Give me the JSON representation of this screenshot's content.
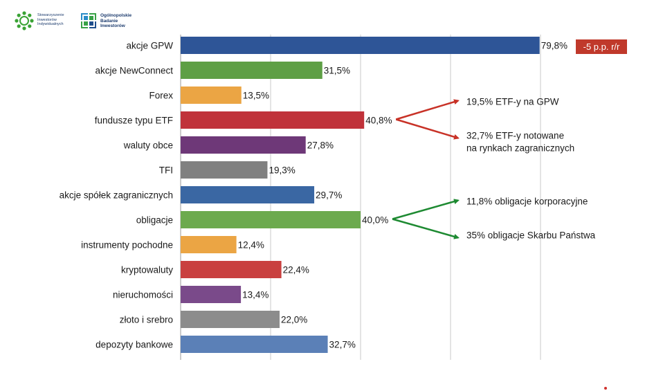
{
  "header": {
    "logo1": {
      "name": "sii-logo-icon",
      "lines": [
        "Stowarzyszenie",
        "Inwestorów",
        "Indywidualnych"
      ]
    },
    "logo2": {
      "name": "obi-logo-icon",
      "lines": [
        "Ogólnopolskie",
        "Badanie",
        "Inwestorów"
      ]
    }
  },
  "badge": {
    "text": "-5 p.p. r/r",
    "color": "#c0392b"
  },
  "chart_data": {
    "type": "bar",
    "orientation": "horizontal",
    "xlim": [
      0,
      100
    ],
    "grid": true,
    "categories": [
      "akcje GPW",
      "akcje NewConnect",
      "Forex",
      "fundusze typu ETF",
      "waluty obce",
      "TFI",
      "akcje spółek zagranicznych",
      "obligacje",
      "instrumenty pochodne",
      "kryptowaluty",
      "nieruchomości",
      "złoto i srebro",
      "depozyty bankowe"
    ],
    "values": [
      79.8,
      31.5,
      13.5,
      40.8,
      27.8,
      19.3,
      29.7,
      40.0,
      12.4,
      22.4,
      13.4,
      22.0,
      32.7
    ],
    "value_labels": [
      "79,8%",
      "31,5%",
      "13,5%",
      "40,8%",
      "27,8%",
      "19,3%",
      "29,7%",
      "40,0%",
      "12,4%",
      "22,4%",
      "13,4%",
      "22,0%",
      "32,7%"
    ],
    "colors": [
      "#2e5597",
      "#5e9f45",
      "#eba544",
      "#c0323a",
      "#6e3878",
      "#808080",
      "#3a67a3",
      "#6caa4e",
      "#eba544",
      "#c9403f",
      "#7a4a8a",
      "#8c8c8c",
      "#5b80b7"
    ],
    "annotations": [
      {
        "from_category": "fundusze typu ETF",
        "color": "#c83227",
        "targets": [
          [
            "19,5% ETF-y na GPW"
          ],
          [
            "32,7% ETF-y notowane",
            "na rynkach zagranicznych"
          ]
        ]
      },
      {
        "from_category": "obligacje",
        "color": "#1e8a32",
        "targets": [
          [
            "11,8% obligacje korporacyjne"
          ],
          [
            "35% obligacje Skarbu Państwa"
          ]
        ]
      }
    ]
  }
}
